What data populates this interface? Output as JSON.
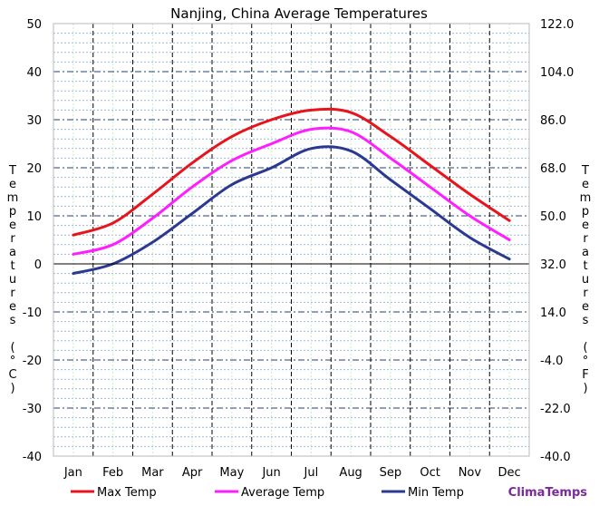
{
  "chart_data": {
    "type": "line",
    "title": "Nanjing, China Average Temperatures",
    "categories": [
      "Jan",
      "Feb",
      "Mar",
      "Apr",
      "May",
      "Jun",
      "Jul",
      "Aug",
      "Sep",
      "Oct",
      "Nov",
      "Dec"
    ],
    "ylabel_left": "Temperatures (°C)",
    "ylabel_right": "Temperatures (°F)",
    "ylim_left": [
      -40,
      50
    ],
    "ylim_right": [
      -40,
      122
    ],
    "yticks_left": [
      "50",
      "40",
      "30",
      "20",
      "10",
      "0",
      "-10",
      "-20",
      "-30",
      "-40"
    ],
    "yticks_right": [
      "122.0",
      "104.0",
      "86.0",
      "68.0",
      "50.0",
      "32.0",
      "14.0",
      "-4.0",
      "-22.0",
      "-40.0"
    ],
    "grid": true,
    "legend_position": "bottom",
    "series": [
      {
        "name": "Max Temp",
        "color": "#e8141b",
        "values": [
          6.0,
          8.5,
          14.5,
          21.0,
          26.5,
          30.0,
          32.0,
          31.5,
          26.5,
          20.5,
          14.5,
          9.0
        ]
      },
      {
        "name": "Average Temp",
        "color": "#ff1eff",
        "values": [
          2.0,
          4.0,
          9.5,
          16.0,
          21.5,
          25.0,
          28.0,
          27.5,
          22.0,
          16.0,
          10.0,
          5.0
        ]
      },
      {
        "name": "Min Temp",
        "color": "#2b3990",
        "values": [
          -2.0,
          0.0,
          4.5,
          10.5,
          16.5,
          20.0,
          24.0,
          23.5,
          17.5,
          11.5,
          5.5,
          1.0
        ]
      }
    ],
    "brand": "ClimaTemps"
  }
}
